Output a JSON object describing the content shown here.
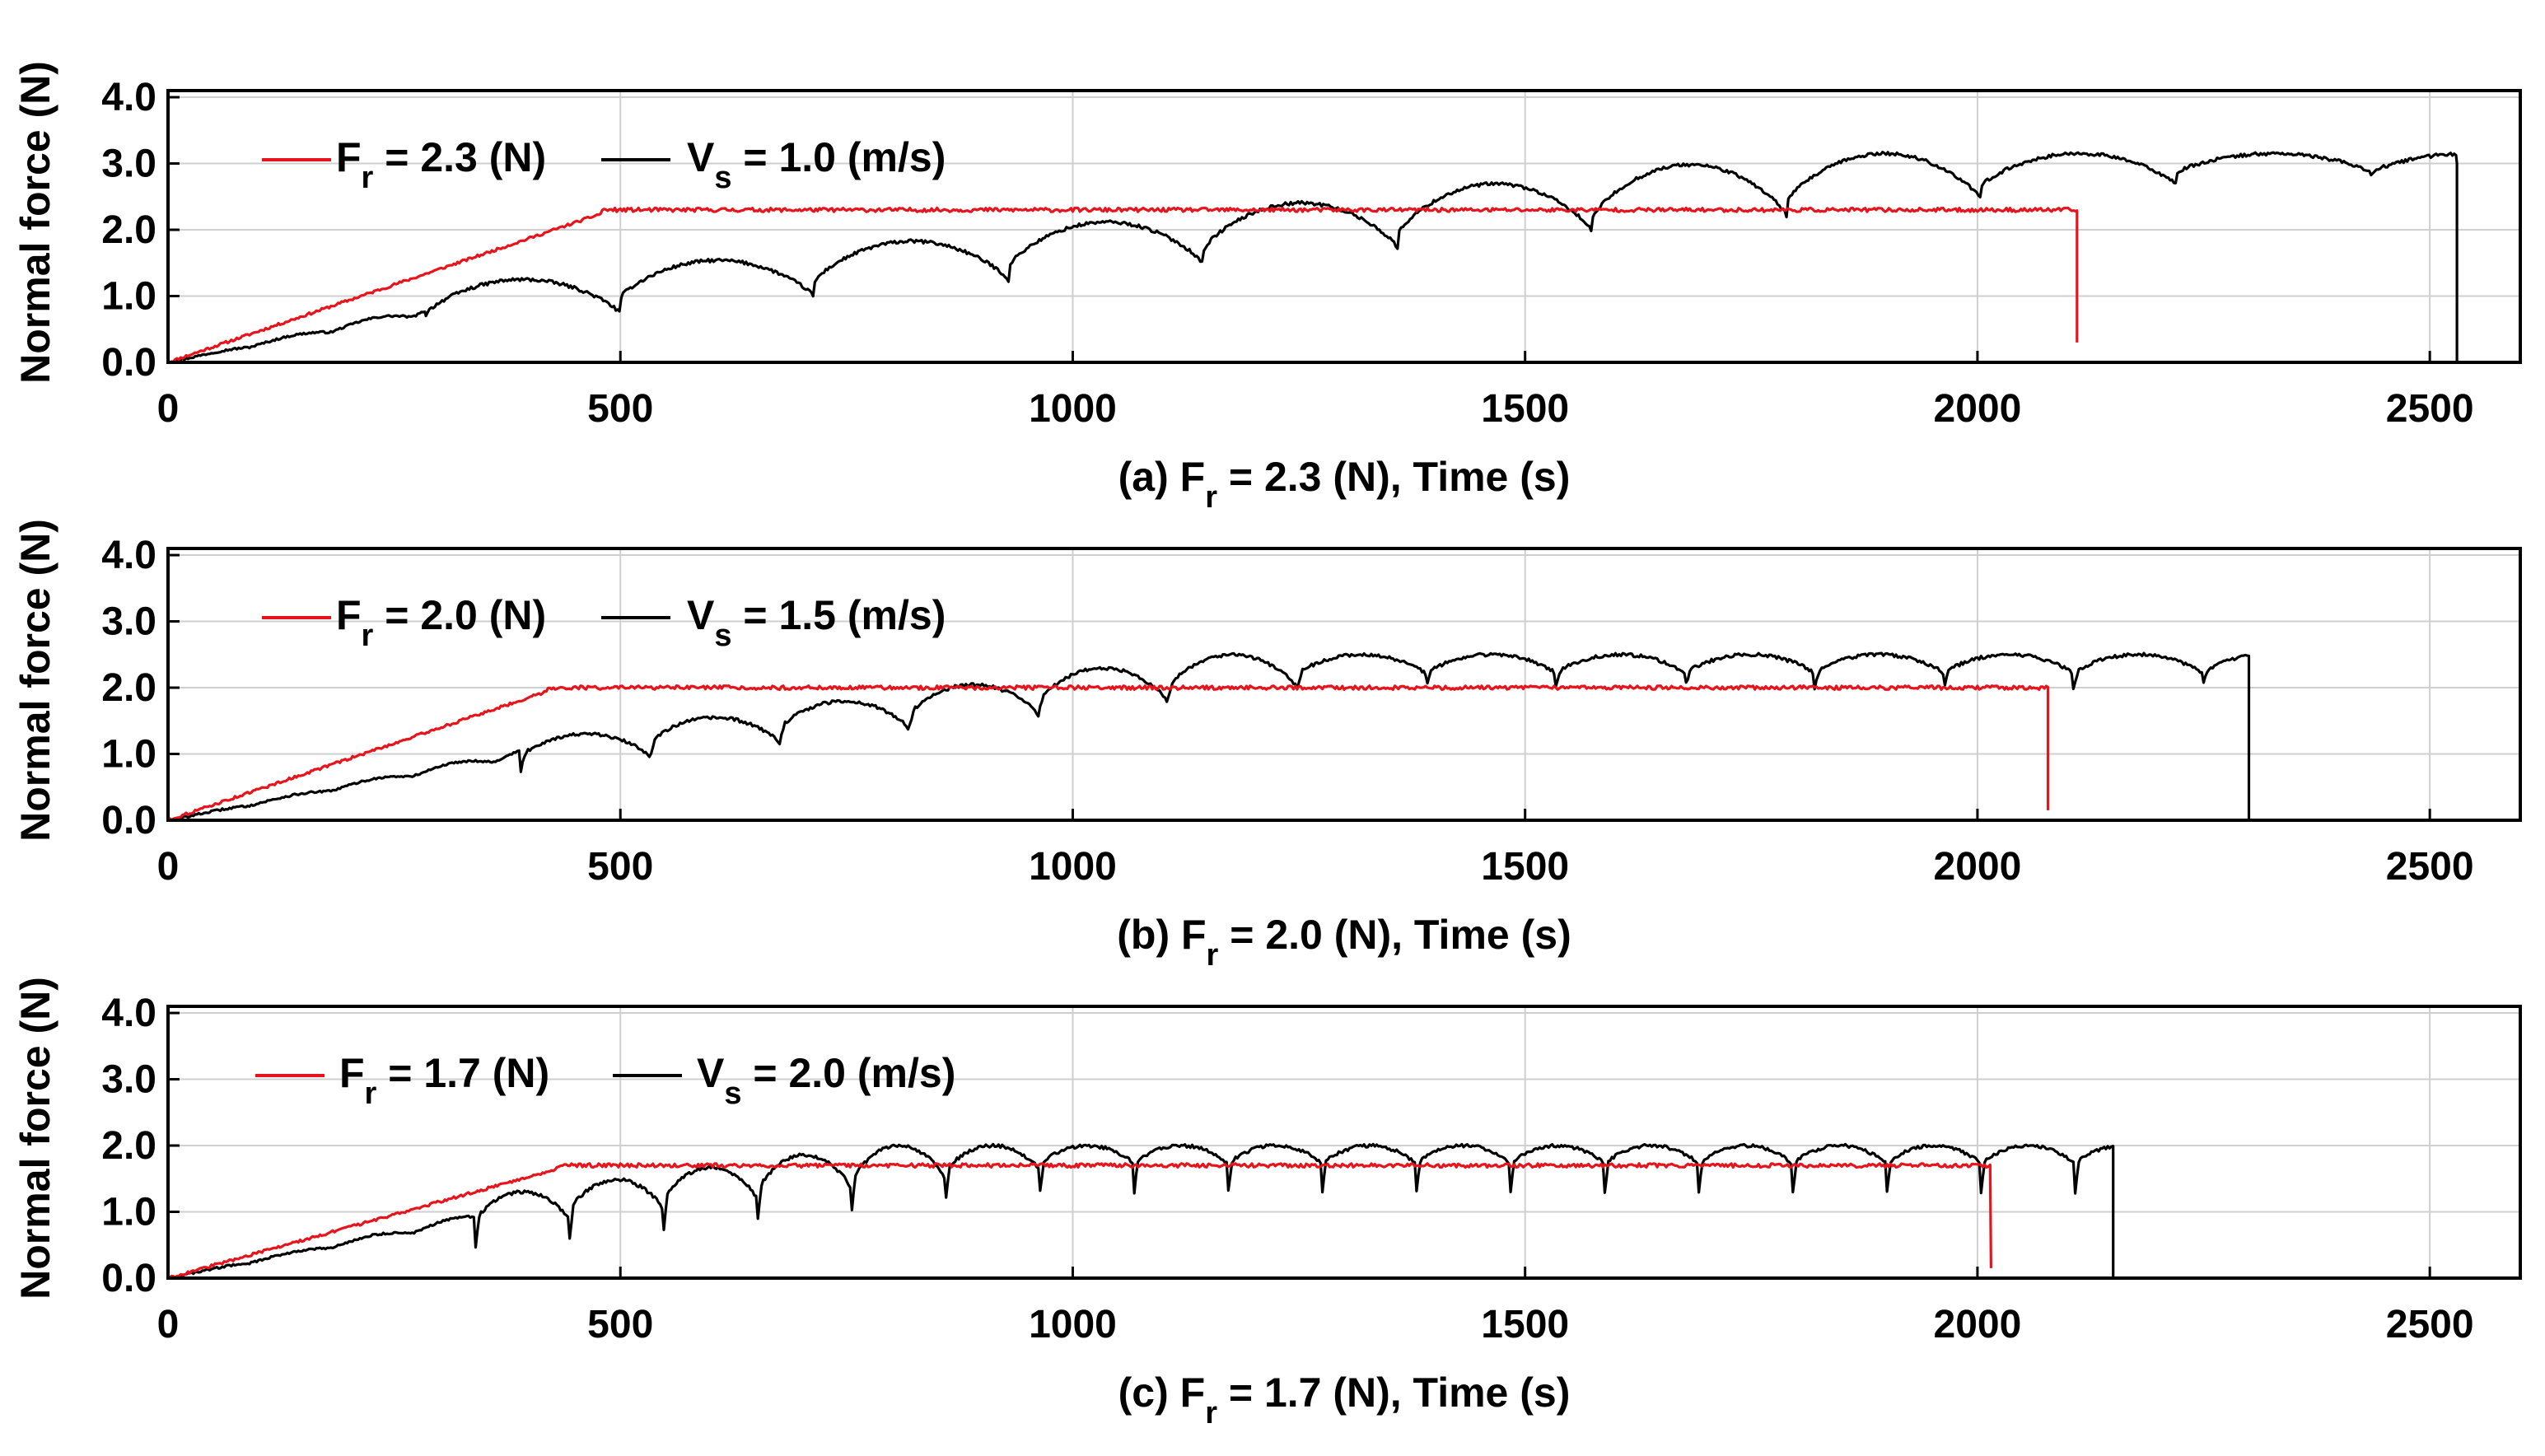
{
  "colors": {
    "red": "#e8141c",
    "black": "#000000"
  },
  "chart_data": [
    {
      "type": "line",
      "panel": "a",
      "xlabel": {
        "prefix": "(a) F",
        "sub": "r",
        "suffix": " = 2.3 (N), Time (s)"
      },
      "ylabel": "Normal force (N)",
      "xlim": [
        0,
        2600
      ],
      "ylim": [
        0,
        4.1
      ],
      "xticks": [
        0,
        500,
        1000,
        1500,
        2000,
        2500
      ],
      "xtick_labels": [
        "0",
        "500",
        "1000",
        "1500",
        "2000",
        "2500"
      ],
      "yticks": [
        0,
        1,
        2,
        3,
        4
      ],
      "ytick_labels": [
        "0.0",
        "1.0",
        "2.0",
        "3.0",
        "4.0"
      ],
      "legend": [
        {
          "name": "F",
          "sub": "r",
          "rest": " = 2.3 (N)",
          "color": "#e8141c"
        },
        {
          "name": "V",
          "sub": "s",
          "rest": " = 1.0 (m/s)",
          "color": "#000000"
        }
      ],
      "series": [
        {
          "name": "Fr = 2.3 (N)",
          "color": "#e8141c",
          "ramp_end": 480,
          "plateau": 2.3,
          "end_t": 2110,
          "end_val": 0.3
        },
        {
          "name": "Vs = 1.0 (m/s)",
          "color": "#000000",
          "arch_start": 285,
          "arch_period": 215,
          "min_start": 0.72,
          "max_start": 1.25,
          "cap_max": 3.15,
          "max_growth": 0.00125,
          "dip_depth": 0,
          "end_t": 2530,
          "end_val": 3.0
        }
      ]
    },
    {
      "type": "line",
      "panel": "b",
      "xlabel": {
        "prefix": "(b) F",
        "sub": "r",
        "suffix": " = 2.0 (N), Time (s)"
      },
      "ylabel": "Normal force (N)",
      "xlim": [
        0,
        2600
      ],
      "ylim": [
        0,
        4.1
      ],
      "xticks": [
        0,
        500,
        1000,
        1500,
        2000,
        2500
      ],
      "xtick_labels": [
        "0",
        "500",
        "1000",
        "1500",
        "2000",
        "2500"
      ],
      "yticks": [
        0,
        1,
        2,
        3,
        4
      ],
      "ytick_labels": [
        "0.0",
        "1.0",
        "2.0",
        "3.0",
        "4.0"
      ],
      "legend": [
        {
          "name": "F",
          "sub": "r",
          "rest": " = 2.0 (N)",
          "color": "#e8141c"
        },
        {
          "name": "V",
          "sub": "s",
          "rest": " = 1.5 (m/s)",
          "color": "#000000"
        }
      ],
      "series": [
        {
          "name": "Fr = 2.0 (N)",
          "color": "#e8141c",
          "ramp_end": 420,
          "plateau": 2.0,
          "end_t": 2078,
          "end_val": 0.15
        },
        {
          "name": "Vs = 1.5 (m/s)",
          "color": "#000000",
          "arch_start": 390,
          "arch_period": 143,
          "min_start": 0.95,
          "max_start": 1.3,
          "cap_max": 2.5,
          "max_growth": 0.0016,
          "dip_depth": 0.2,
          "end_t": 2300,
          "end_val": 2.4
        }
      ]
    },
    {
      "type": "line",
      "panel": "c",
      "xlabel": {
        "prefix": "(c) F",
        "sub": "r",
        "suffix": " = 1.7 (N), Time (s)"
      },
      "ylabel": "Normal force (N)",
      "xlim": [
        0,
        2600
      ],
      "ylim": [
        0,
        4.1
      ],
      "xticks": [
        0,
        500,
        1000,
        1500,
        2000,
        2500
      ],
      "xtick_labels": [
        "0",
        "500",
        "1000",
        "1500",
        "2000",
        "2500"
      ],
      "yticks": [
        0,
        1,
        2,
        3,
        4
      ],
      "ytick_labels": [
        "0.0",
        "1.0",
        "2.0",
        "3.0",
        "4.0"
      ],
      "legend": [
        {
          "name": "F",
          "sub": "r",
          "rest": " = 1.7 (N)",
          "color": "#e8141c"
        },
        {
          "name": "V",
          "sub": "s",
          "rest": " = 2.0 (m/s)",
          "color": "#000000"
        }
      ],
      "series": [
        {
          "name": "Fr = 1.7 (N)",
          "color": "#e8141c",
          "ramp_end": 430,
          "plateau": 1.7,
          "end_t": 2015,
          "end_val": 0.15
        },
        {
          "name": "Vs = 2.0 (m/s)",
          "color": "#000000",
          "arch_start": 340,
          "arch_period": 104,
          "min_start": 0.85,
          "max_start": 1.3,
          "cap_max": 2.0,
          "max_growth": 0.0016,
          "dip_depth": 0.4,
          "end_t": 2150,
          "end_val": 1.9
        }
      ]
    }
  ]
}
